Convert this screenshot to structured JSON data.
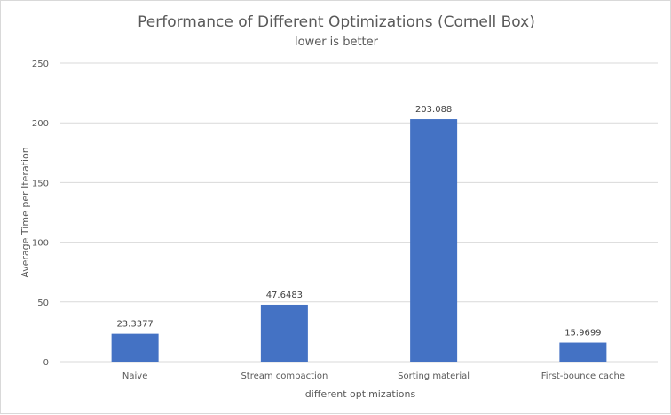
{
  "chart_data": {
    "type": "bar",
    "title": "Performance of Different Optimizations (Cornell Box)",
    "subtitle": "lower is better",
    "xlabel": "different optimizations",
    "ylabel": "Average Time per Iteration",
    "categories": [
      "Naive",
      "Stream compaction",
      "Sorting material",
      "First-bounce cache"
    ],
    "series": [
      {
        "values": [
          23.3377,
          47.6483,
          203.088,
          15.9699
        ]
      }
    ],
    "data_labels": [
      "23.3377",
      "47.6483",
      "203.088",
      "15.9699"
    ],
    "ylim": [
      0,
      250
    ],
    "yticks": [
      0,
      50,
      100,
      150,
      200,
      250
    ],
    "grid": true,
    "legend": "none",
    "bar_color": "#4472c4"
  }
}
